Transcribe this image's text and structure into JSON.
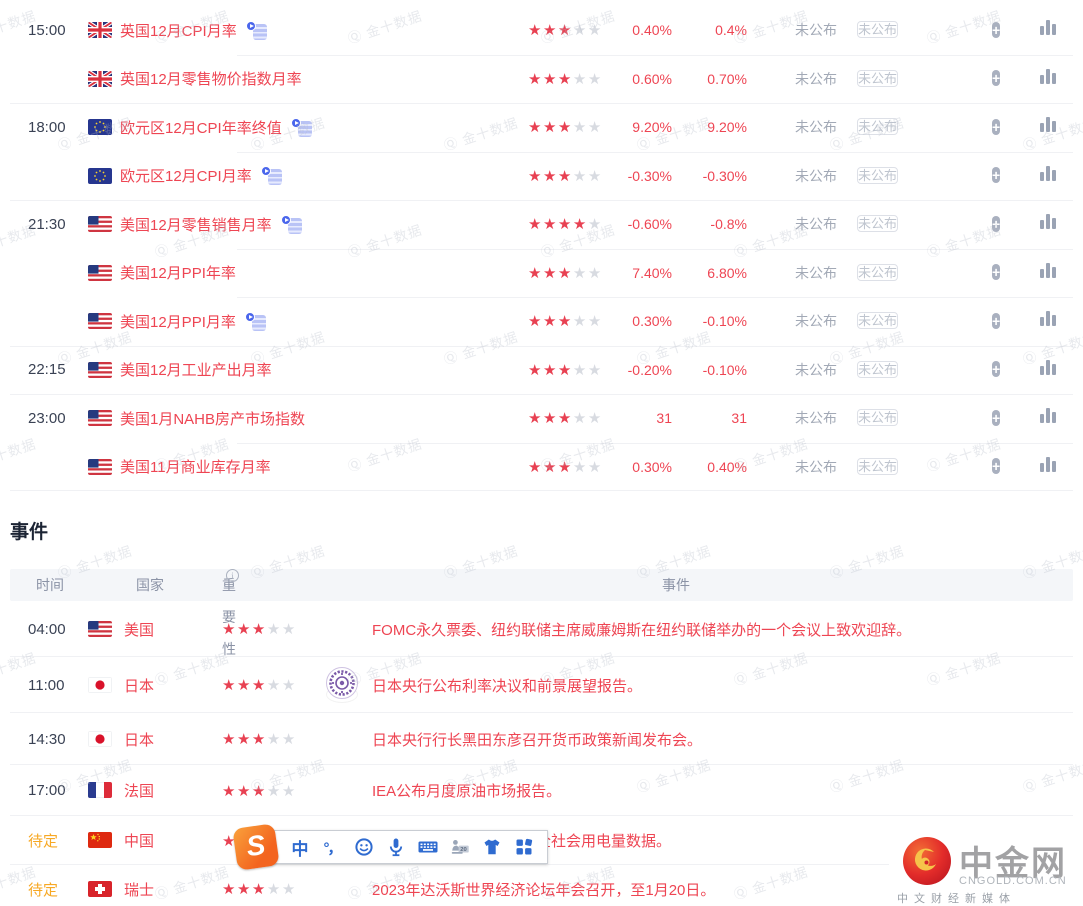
{
  "watermark": {
    "text": "金十数据",
    "glyph": "jin10-q-logo"
  },
  "calendar": {
    "rows": [
      {
        "time": "15:00",
        "flag": "gb",
        "name": "英国12月CPI月率",
        "detail_icon": true,
        "stars": 3,
        "previous": "0.40%",
        "forecast": "0.4%",
        "published": "未公布",
        "input_text": "未公布",
        "separator": "none"
      },
      {
        "time": "",
        "flag": "gb",
        "name": "英国12月零售物价指数月率",
        "detail_icon": false,
        "stars": 3,
        "previous": "0.60%",
        "forecast": "0.70%",
        "published": "未公布",
        "input_text": "未公布",
        "separator": "inset"
      },
      {
        "time": "18:00",
        "flag": "eu",
        "name": "欧元区12月CPI年率终值",
        "detail_icon": true,
        "stars": 3,
        "previous": "9.20%",
        "forecast": "9.20%",
        "published": "未公布",
        "input_text": "未公布",
        "separator": "full"
      },
      {
        "time": "",
        "flag": "eu",
        "name": "欧元区12月CPI月率",
        "detail_icon": true,
        "stars": 3,
        "previous": "-0.30%",
        "forecast": "-0.30%",
        "published": "未公布",
        "input_text": "未公布",
        "separator": "inset"
      },
      {
        "time": "21:30",
        "flag": "us",
        "name": "美国12月零售销售月率",
        "detail_icon": true,
        "stars": 4,
        "previous": "-0.60%",
        "forecast": "-0.8%",
        "published": "未公布",
        "input_text": "未公布",
        "separator": "full"
      },
      {
        "time": "",
        "flag": "us",
        "name": "美国12月PPI年率",
        "detail_icon": false,
        "stars": 3,
        "previous": "7.40%",
        "forecast": "6.80%",
        "published": "未公布",
        "input_text": "未公布",
        "separator": "inset"
      },
      {
        "time": "",
        "flag": "us",
        "name": "美国12月PPI月率",
        "detail_icon": true,
        "stars": 3,
        "previous": "0.30%",
        "forecast": "-0.10%",
        "published": "未公布",
        "input_text": "未公布",
        "separator": "inset"
      },
      {
        "time": "22:15",
        "flag": "us",
        "name": "美国12月工业产出月率",
        "detail_icon": false,
        "stars": 3,
        "previous": "-0.20%",
        "forecast": "-0.10%",
        "published": "未公布",
        "input_text": "未公布",
        "separator": "full"
      },
      {
        "time": "23:00",
        "flag": "us",
        "name": "美国1月NAHB房产市场指数",
        "detail_icon": false,
        "stars": 3,
        "previous": "31",
        "forecast": "31",
        "published": "未公布",
        "input_text": "未公布",
        "separator": "full"
      },
      {
        "time": "",
        "flag": "us",
        "name": "美国11月商业库存月率",
        "detail_icon": false,
        "stars": 3,
        "previous": "0.30%",
        "forecast": "0.40%",
        "published": "未公布",
        "input_text": "未公布",
        "separator": "inset"
      }
    ]
  },
  "events": {
    "title": "事件",
    "headers": {
      "time": "时间",
      "country": "国家",
      "importance": "重要性",
      "importance_info": "i",
      "event": "事件"
    },
    "rows": [
      {
        "time": "04:00",
        "pending": false,
        "flag": "us",
        "country": "美国",
        "stars": 3,
        "avatar": "williams-photo",
        "text": "FOMC永久票委、纽约联储主席威廉姆斯在纽约联储举办的一个会议上致欢迎辞。",
        "text_offset": false
      },
      {
        "time": "11:00",
        "pending": false,
        "flag": "jp",
        "country": "日本",
        "stars": 3,
        "avatar": "boj-seal",
        "text": "日本央行公布利率决议和前景展望报告。",
        "text_offset": false
      },
      {
        "time": "14:30",
        "pending": false,
        "flag": "jp",
        "country": "日本",
        "stars": 3,
        "avatar": "kuroda-photo",
        "text": "日本央行行长黑田东彦召开货币政策新闻发布会。",
        "text_offset": false
      },
      {
        "time": "17:00",
        "pending": false,
        "flag": "fr",
        "country": "法国",
        "stars": 3,
        "avatar": null,
        "text": "IEA公布月度原油市场报告。",
        "text_offset": false
      },
      {
        "time": "待定",
        "pending": true,
        "flag": "cn",
        "country": "中国",
        "stars": 3,
        "avatar": null,
        "text": "发布全社会用电量数据。",
        "text_offset": true
      },
      {
        "time": "待定",
        "pending": true,
        "flag": "ch",
        "country": "瑞士",
        "stars": 3,
        "avatar": null,
        "text": "2023年达沃斯世界经济论坛年会召开，至1月20日。",
        "text_offset": false
      }
    ]
  },
  "ime": {
    "chinese_label": "中",
    "punctuation_label": "°，",
    "logo_letter": "S",
    "icons": [
      "sogou-logo",
      "chinese-mode-icon",
      "punctuation-icon",
      "emoji-icon",
      "microphone-icon",
      "keyboard-icon",
      "figure-20-icon",
      "skin-icon",
      "toolbox-icon"
    ]
  },
  "brand": {
    "name": "中金网",
    "domain": "CNGOLD.COM.CN",
    "tagline": "中文财经新媒体"
  },
  "colors": {
    "accent_red": "#ee4553",
    "star_red": "#e84152",
    "star_empty": "#d8dbe1",
    "pending_orange": "#f7a824",
    "muted_gray": "#a2a9b6",
    "ime_blue": "#2f6bd0"
  }
}
